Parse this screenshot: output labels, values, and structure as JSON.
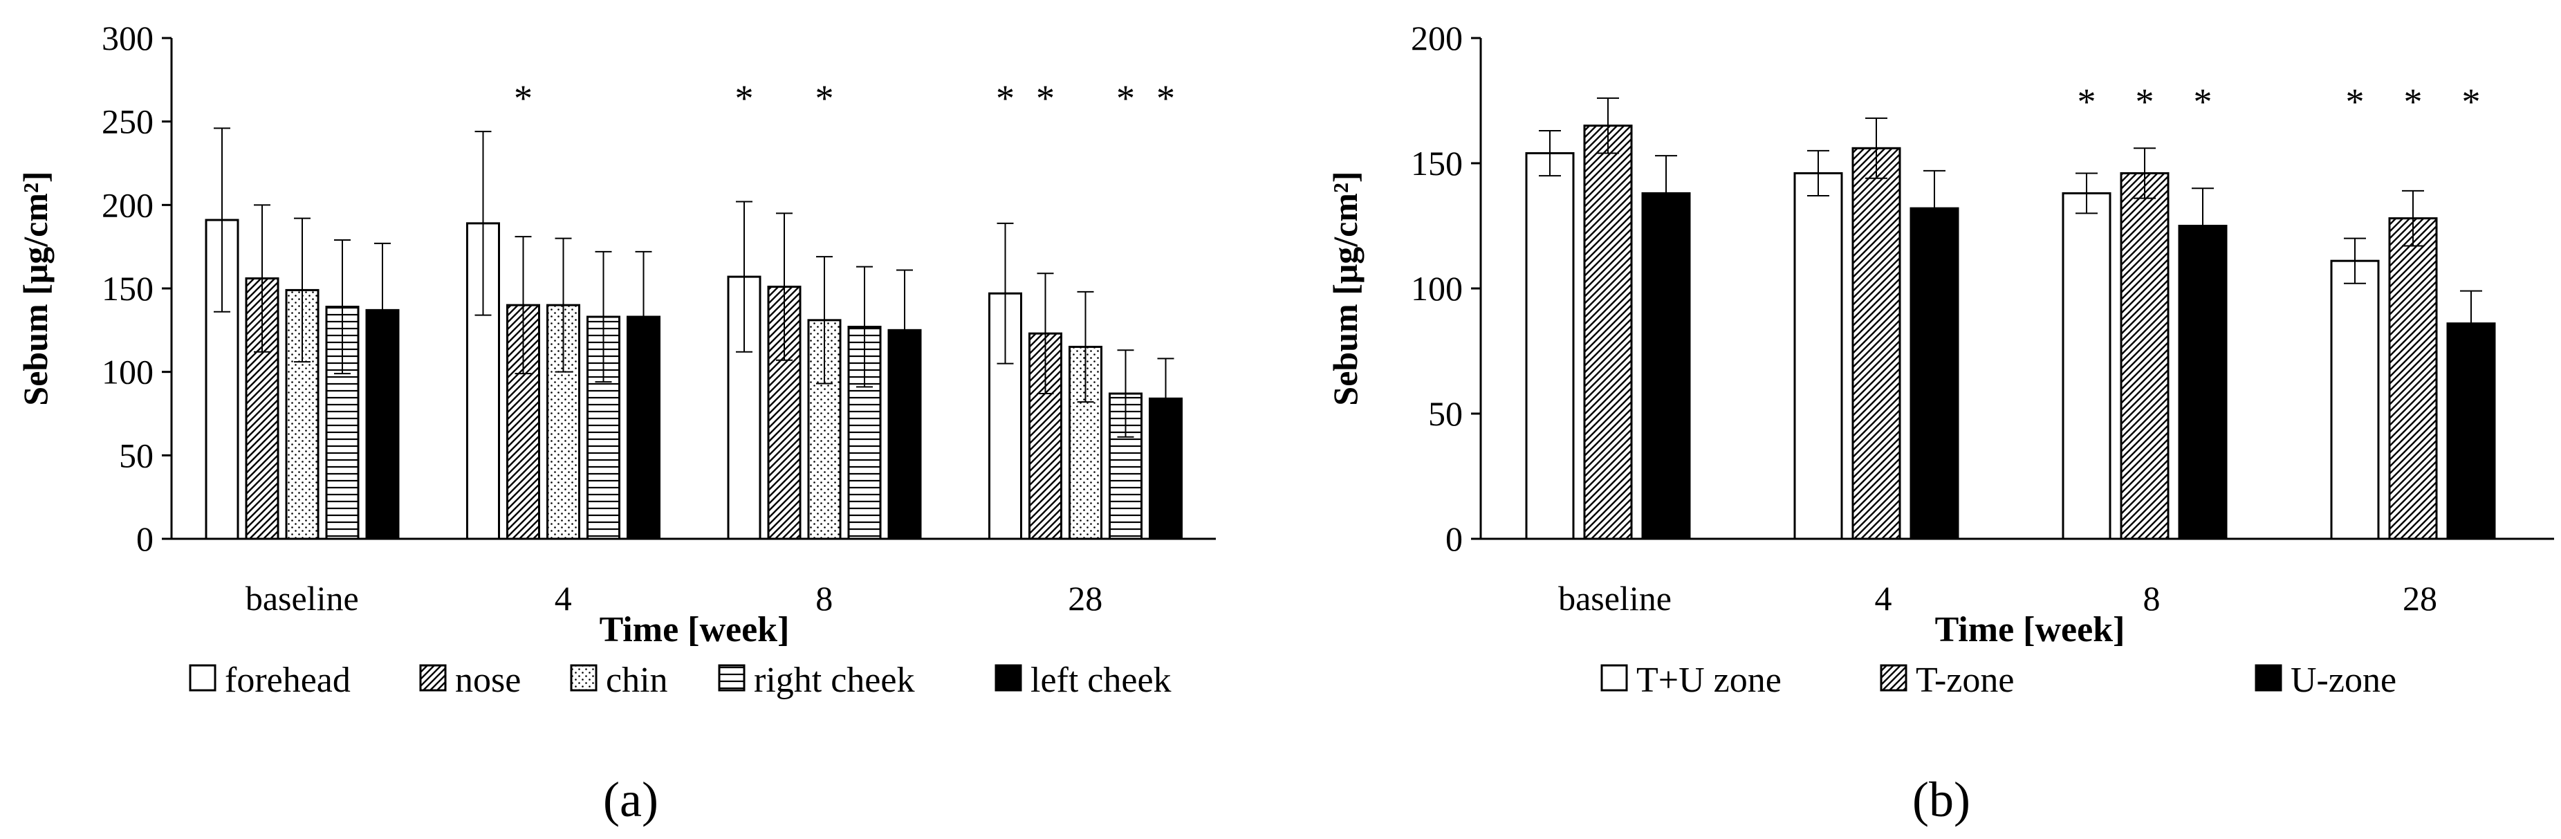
{
  "figure": {
    "panel_a_label": "(a)",
    "panel_b_label": "(b)"
  },
  "chart_data": [
    {
      "type": "bar",
      "panel": "a",
      "title": "",
      "xlabel": "Time [week]",
      "ylabel": "Sebum [μg/cm²]",
      "ylim": [
        0,
        300
      ],
      "yticks": [
        0,
        50,
        100,
        150,
        200,
        250,
        300
      ],
      "grid": false,
      "legend_position": "bottom",
      "categories": [
        "baseline",
        "4",
        "8",
        "28"
      ],
      "series": [
        {
          "name": "forehead",
          "pattern": "white",
          "values": [
            191,
            189,
            157,
            147
          ],
          "errors": [
            55,
            55,
            45,
            42
          ],
          "significant": [
            false,
            false,
            true,
            true
          ]
        },
        {
          "name": "nose",
          "pattern": "diag",
          "values": [
            156,
            140,
            151,
            123
          ],
          "errors": [
            44,
            41,
            44,
            36
          ],
          "significant": [
            false,
            true,
            false,
            true
          ]
        },
        {
          "name": "chin",
          "pattern": "dots",
          "values": [
            149,
            140,
            131,
            115
          ],
          "errors": [
            43,
            40,
            38,
            33
          ],
          "significant": [
            false,
            false,
            true,
            false
          ]
        },
        {
          "name": "right cheek",
          "pattern": "hlines",
          "values": [
            139,
            133,
            127,
            87
          ],
          "errors": [
            40,
            39,
            36,
            26
          ],
          "significant": [
            false,
            false,
            false,
            true
          ]
        },
        {
          "name": "left cheek",
          "pattern": "black",
          "values": [
            137,
            133,
            125,
            84
          ],
          "errors": [
            40,
            39,
            36,
            24
          ],
          "significant": [
            false,
            false,
            false,
            true
          ]
        }
      ],
      "significance_marker": "*"
    },
    {
      "type": "bar",
      "panel": "b",
      "title": "",
      "xlabel": "Time [week]",
      "ylabel": "Sebum [μg/cm²]",
      "ylim": [
        0,
        200
      ],
      "yticks": [
        0,
        50,
        100,
        150,
        200
      ],
      "grid": false,
      "legend_position": "bottom",
      "categories": [
        "baseline",
        "4",
        "8",
        "28"
      ],
      "series": [
        {
          "name": "T+U zone",
          "pattern": "white",
          "values": [
            154,
            146,
            138,
            111
          ],
          "errors": [
            9,
            9,
            8,
            9
          ],
          "significant": [
            false,
            false,
            true,
            true
          ]
        },
        {
          "name": "T-zone",
          "pattern": "diag",
          "values": [
            165,
            156,
            146,
            128
          ],
          "errors": [
            11,
            12,
            10,
            11
          ],
          "significant": [
            false,
            false,
            true,
            true
          ]
        },
        {
          "name": "U-zone",
          "pattern": "black",
          "values": [
            138,
            132,
            125,
            86
          ],
          "errors": [
            15,
            15,
            15,
            13
          ],
          "significant": [
            false,
            false,
            true,
            true
          ]
        }
      ],
      "significance_marker": "*"
    }
  ]
}
